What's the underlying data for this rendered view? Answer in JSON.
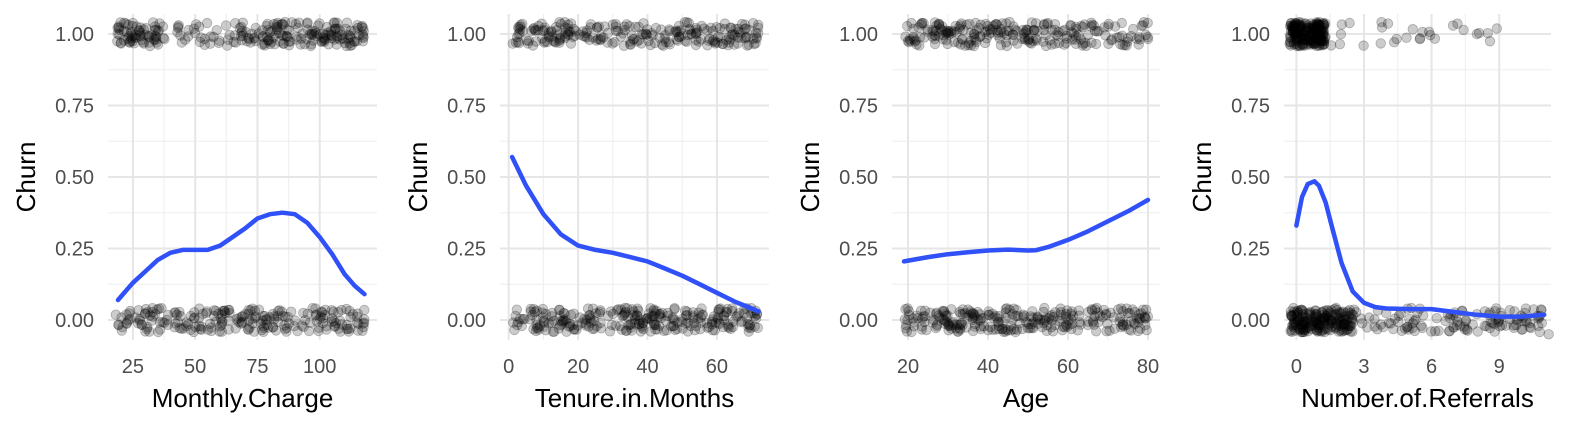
{
  "chart_data": [
    {
      "type": "scatter",
      "xlabel": "Monthly.Charge",
      "ylabel": "Churn",
      "xlim": [
        15,
        123
      ],
      "ylim": [
        -0.07,
        1.07
      ],
      "x_ticks": [
        25,
        50,
        75,
        100
      ],
      "y_ticks": [
        0,
        0.25,
        0.5,
        0.75,
        1.0
      ],
      "y_tick_labels": [
        "0.00",
        "0.25",
        "0.50",
        "0.75",
        "1.00"
      ],
      "points": {
        "color": "#000000",
        "opacity": 0.2,
        "churn1_dense_range": [
          18,
          118
        ],
        "churn1_sparse_range": [
          35,
          68
        ],
        "churn0_range": [
          18,
          119
        ]
      },
      "smooth": {
        "color": "#3050f8",
        "x": [
          19,
          25,
          30,
          35,
          40,
          45,
          50,
          55,
          60,
          65,
          70,
          75,
          80,
          85,
          90,
          95,
          100,
          105,
          110,
          114,
          118
        ],
        "y": [
          0.07,
          0.13,
          0.17,
          0.21,
          0.235,
          0.245,
          0.245,
          0.245,
          0.26,
          0.29,
          0.32,
          0.355,
          0.37,
          0.375,
          0.37,
          0.34,
          0.29,
          0.23,
          0.16,
          0.12,
          0.09
        ]
      }
    },
    {
      "type": "scatter",
      "xlabel": "Tenure.in.Months",
      "ylabel": "Churn",
      "xlim": [
        -2.5,
        75
      ],
      "ylim": [
        -0.07,
        1.07
      ],
      "x_ticks": [
        0,
        20,
        40,
        60
      ],
      "y_ticks": [
        0,
        0.25,
        0.5,
        0.75,
        1.0
      ],
      "y_tick_labels": [
        "0.00",
        "0.25",
        "0.50",
        "0.75",
        "1.00"
      ],
      "points": {
        "color": "#000000",
        "opacity": 0.2,
        "churn1_dense_range": [
          1,
          72
        ],
        "churn1_sparse_range": [
          1,
          72
        ],
        "churn0_range": [
          1,
          72
        ]
      },
      "smooth": {
        "color": "#3050f8",
        "x": [
          1,
          5,
          10,
          15,
          20,
          25,
          30,
          35,
          40,
          45,
          50,
          55,
          60,
          65,
          70,
          72
        ],
        "y": [
          0.57,
          0.47,
          0.37,
          0.3,
          0.26,
          0.245,
          0.235,
          0.22,
          0.205,
          0.18,
          0.155,
          0.125,
          0.095,
          0.065,
          0.04,
          0.03
        ]
      }
    },
    {
      "type": "scatter",
      "xlabel": "Age",
      "ylabel": "Churn",
      "xlim": [
        16,
        83
      ],
      "ylim": [
        -0.07,
        1.07
      ],
      "x_ticks": [
        20,
        40,
        60,
        80
      ],
      "y_ticks": [
        0,
        0.25,
        0.5,
        0.75,
        1.0
      ],
      "y_tick_labels": [
        "0.00",
        "0.25",
        "0.50",
        "0.75",
        "1.00"
      ],
      "points": {
        "color": "#000000",
        "opacity": 0.2,
        "churn1_dense_range": [
          19,
          80
        ],
        "churn1_sparse_range": [
          19,
          80
        ],
        "churn0_range": [
          19,
          80
        ]
      },
      "smooth": {
        "color": "#3050f8",
        "x": [
          19,
          25,
          30,
          35,
          40,
          45,
          50,
          52,
          55,
          60,
          65,
          70,
          75,
          80
        ],
        "y": [
          0.205,
          0.22,
          0.23,
          0.237,
          0.243,
          0.246,
          0.243,
          0.244,
          0.255,
          0.28,
          0.31,
          0.345,
          0.38,
          0.42
        ]
      }
    },
    {
      "type": "scatter",
      "xlabel": "Number.of.Referrals",
      "ylabel": "Churn",
      "xlim": [
        -0.55,
        11.3
      ],
      "ylim": [
        -0.07,
        1.07
      ],
      "x_ticks": [
        0,
        3,
        6,
        9
      ],
      "y_ticks": [
        0,
        0.25,
        0.5,
        0.75,
        1.0
      ],
      "y_tick_labels": [
        "0.00",
        "0.25",
        "0.50",
        "0.75",
        "1.00"
      ],
      "points": {
        "color": "#000000",
        "opacity": 0.2,
        "churn1_dense_range": [
          -0.3,
          1.3
        ],
        "churn1_sparse_range": [
          1.4,
          9.3
        ],
        "churn0_range": [
          -0.3,
          10.9
        ]
      },
      "smooth": {
        "color": "#3050f8",
        "x": [
          0,
          0.25,
          0.5,
          0.8,
          1.0,
          1.3,
          1.6,
          2.0,
          2.5,
          3.0,
          3.5,
          4.0,
          5.0,
          6.0,
          7.0,
          8.0,
          9.0,
          10.0,
          11.0
        ],
        "y": [
          0.33,
          0.43,
          0.475,
          0.485,
          0.47,
          0.41,
          0.32,
          0.2,
          0.1,
          0.06,
          0.045,
          0.04,
          0.038,
          0.038,
          0.028,
          0.018,
          0.012,
          0.012,
          0.018
        ]
      }
    }
  ]
}
